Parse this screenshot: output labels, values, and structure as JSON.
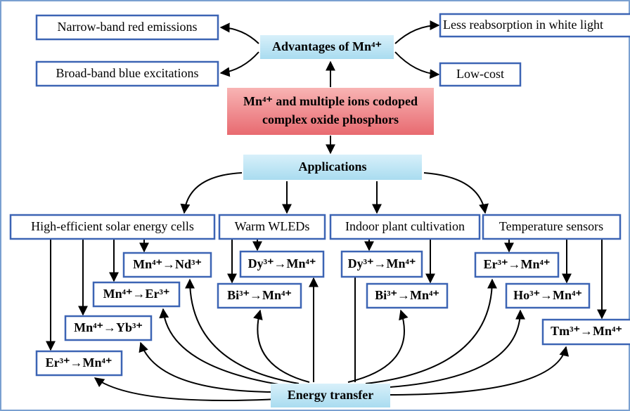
{
  "advantages": {
    "title": "Advantages of Mn⁴⁺",
    "items": [
      "Narrow-band red emissions",
      "Broad-band blue excitations",
      "Less reabsorption in white light",
      "Low-cost"
    ]
  },
  "core": [
    "Mn⁴⁺ and multiple ions codoped",
    "complex oxide phosphors"
  ],
  "applications": {
    "title": "Applications",
    "areas": [
      {
        "label": "High-efficient solar energy cells",
        "transfers": [
          "Mn⁴⁺→Nd³⁺",
          "Mn⁴⁺→Er³⁺",
          "Mn⁴⁺→Yb³⁺",
          "Er³⁺→Mn⁴⁺"
        ]
      },
      {
        "label": "Warm WLEDs",
        "transfers": [
          "Dy³⁺→Mn⁴⁺",
          "Bi³⁺→Mn⁴⁺"
        ]
      },
      {
        "label": "Indoor plant cultivation",
        "transfers": [
          "Dy³⁺→Mn⁴⁺",
          "Bi³⁺→Mn⁴⁺"
        ]
      },
      {
        "label": "Temperature sensors",
        "transfers": [
          "Er³⁺→Mn⁴⁺",
          "Ho³⁺→Mn⁴⁺",
          "Tm³⁺→Mn⁴⁺"
        ]
      }
    ]
  },
  "energy_transfer": "Energy transfer"
}
